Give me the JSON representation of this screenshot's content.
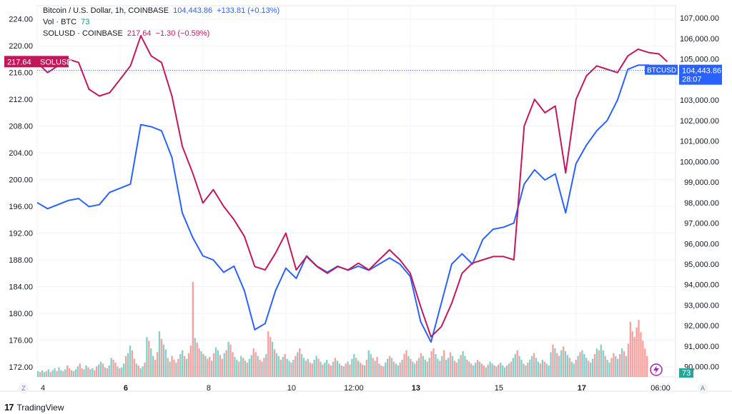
{
  "legend": {
    "symbol_title": "Bitcoin / U.S. Dollar, 1h, COINBASE",
    "btc_last": "104,443.86",
    "btc_change": "+133.81 (+0.13%)",
    "vol_label": "Vol · BTC",
    "vol_value": "73",
    "sol_title": "SOLUSD · COINBASE",
    "sol_last": "217.64",
    "sol_change": "−1.30 (−0.59%)"
  },
  "footer": {
    "brand": "TradingView",
    "logo": "17"
  },
  "corners": {
    "left": "Z",
    "right": "A"
  },
  "colors": {
    "btc": "#2962ff",
    "sol": "#c2185b",
    "vol_up": "#26a69a",
    "vol_down": "#ef5350"
  },
  "chart_data": {
    "type": "line",
    "x_ticks": [
      "4",
      "6",
      "8",
      "10",
      "12:00",
      "13",
      "15",
      "17",
      "06:00"
    ],
    "x_range": [
      0,
      15.4
    ],
    "left_axis": {
      "series": "SOLUSD",
      "ylim": [
        170.5,
        226
      ],
      "ticks": [
        172,
        176,
        180,
        184,
        188,
        192,
        196,
        200,
        204,
        208,
        212,
        216,
        220,
        224
      ],
      "tick_labels": [
        "172.00",
        "176.00",
        "180.00",
        "184.00",
        "188.00",
        "192.00",
        "196.00",
        "200.00",
        "204.00",
        "208.00",
        "212.00",
        "216.00",
        "220.00",
        "224.00"
      ]
    },
    "right_axis": {
      "series": "BTCUSD",
      "ylim": [
        89500,
        107600
      ],
      "ticks": [
        90000,
        91000,
        92000,
        93000,
        94000,
        95000,
        96000,
        97000,
        98000,
        99000,
        100000,
        101000,
        102000,
        103000,
        104000,
        105000,
        106000,
        107000
      ],
      "tick_labels": [
        "90,000.00",
        "91,000.00",
        "92,000.00",
        "93,000.00",
        "94,000.00",
        "95,000.00",
        "96,000.00",
        "97,000.00",
        "98,000.00",
        "99,000.00",
        "100,000.00",
        "101,000.00",
        "102,000.00",
        "103,000.00",
        "104,000.00",
        "105,000.00",
        "106,000.00",
        "107,000.00"
      ]
    },
    "series": [
      {
        "name": "BTCUSD",
        "axis": "right",
        "x": [
          0,
          0.25,
          0.5,
          0.75,
          1,
          1.25,
          1.5,
          1.75,
          2,
          2.25,
          2.5,
          2.75,
          3,
          3.25,
          3.5,
          3.75,
          4,
          4.25,
          4.5,
          4.75,
          5,
          5.25,
          5.5,
          5.75,
          6,
          6.25,
          6.5,
          6.75,
          7,
          7.25,
          7.5,
          7.75,
          8,
          8.25,
          8.5,
          8.75,
          9,
          9.25,
          9.5,
          9.75,
          10,
          10.25,
          10.5,
          10.75,
          11,
          11.25,
          11.5,
          11.75,
          12,
          12.25,
          12.5,
          12.75,
          13,
          13.25,
          13.5,
          13.75,
          14,
          14.25,
          14.5,
          14.75,
          15,
          15.2
        ],
        "y": [
          98000,
          97700,
          97900,
          98100,
          98200,
          97800,
          97900,
          98500,
          98700,
          98900,
          101800,
          101700,
          101500,
          100200,
          97500,
          96300,
          95400,
          95200,
          94600,
          94900,
          93700,
          91800,
          92100,
          93700,
          94800,
          94300,
          95400,
          94900,
          94600,
          94900,
          94700,
          94900,
          94700,
          95000,
          95300,
          95000,
          94400,
          92200,
          91200,
          93100,
          95000,
          95500,
          95000,
          96200,
          96700,
          96800,
          97000,
          98900,
          99600,
          99100,
          99400,
          97500,
          99900,
          100800,
          101500,
          102000,
          103000,
          104500,
          104700,
          104700,
          104500,
          104440
        ]
      },
      {
        "name": "SOLUSD",
        "axis": "left",
        "x": [
          0,
          0.25,
          0.5,
          0.75,
          1,
          1.25,
          1.5,
          1.75,
          2,
          2.25,
          2.5,
          2.75,
          3,
          3.25,
          3.5,
          3.75,
          4,
          4.25,
          4.5,
          4.75,
          5,
          5.25,
          5.5,
          5.75,
          6,
          6.25,
          6.5,
          6.75,
          7,
          7.25,
          7.5,
          7.75,
          8,
          8.25,
          8.5,
          8.75,
          9,
          9.25,
          9.5,
          9.75,
          10,
          10.25,
          10.5,
          10.75,
          11,
          11.25,
          11.5,
          11.75,
          12,
          12.25,
          12.5,
          12.75,
          13,
          13.25,
          13.5,
          13.75,
          14,
          14.25,
          14.5,
          14.75,
          15,
          15.2
        ],
        "y": [
          217.5,
          216,
          217,
          218,
          217.5,
          213.5,
          212.5,
          213,
          215,
          217,
          221.5,
          218.5,
          217.5,
          212.5,
          205,
          201,
          196.5,
          198.5,
          196,
          194,
          191.5,
          187,
          186.5,
          189,
          192,
          186.5,
          188.5,
          187,
          186,
          187,
          186.5,
          187.5,
          186.5,
          188,
          189.5,
          188,
          186,
          181,
          176.5,
          178,
          181.5,
          186,
          187.5,
          188,
          188.5,
          188.5,
          188,
          208,
          212,
          210,
          211,
          201,
          212,
          215.5,
          217,
          216.5,
          216,
          218.5,
          219.5,
          219,
          218.8,
          217.64
        ]
      }
    ],
    "volume": {
      "ylim": [
        0,
        100
      ],
      "values": [
        6,
        5,
        7,
        5,
        6,
        8,
        5,
        7,
        9,
        6,
        10,
        7,
        6,
        8,
        12,
        9,
        7,
        6,
        8,
        11,
        14,
        9,
        8,
        12,
        10,
        8,
        9,
        7,
        11,
        13,
        16,
        14,
        10,
        9,
        12,
        20,
        18,
        15,
        11,
        9,
        10,
        14,
        22,
        25,
        33,
        28,
        19,
        14,
        12,
        9,
        11,
        15,
        42,
        38,
        30,
        22,
        18,
        26,
        48,
        40,
        34,
        29,
        20,
        16,
        22,
        18,
        15,
        19,
        24,
        28,
        22,
        19,
        25,
        33,
        100,
        41,
        36,
        30,
        27,
        24,
        22,
        19,
        21,
        17,
        25,
        31,
        28,
        23,
        19,
        25,
        28,
        37,
        34,
        26,
        21,
        18,
        16,
        22,
        20,
        17,
        15,
        19,
        23,
        30,
        26,
        22,
        18,
        16,
        20,
        24,
        48,
        42,
        37,
        29,
        25,
        22,
        18,
        21,
        24,
        19,
        17,
        15,
        18,
        22,
        26,
        30,
        24,
        20,
        17,
        19,
        15,
        14,
        18,
        22,
        19,
        16,
        13,
        15,
        18,
        14,
        12,
        16,
        20,
        17,
        14,
        12,
        11,
        14,
        16,
        13,
        19,
        24,
        20,
        17,
        15,
        13,
        12,
        18,
        28,
        24,
        20,
        17,
        21,
        14,
        12,
        11,
        15,
        19,
        22,
        20,
        16,
        14,
        12,
        15,
        18,
        24,
        28,
        22,
        19,
        16,
        14,
        17,
        20,
        25,
        22,
        18,
        16,
        20,
        27,
        30,
        24,
        19,
        17,
        22,
        28,
        18,
        20,
        26,
        22,
        17,
        15,
        19,
        23,
        27,
        22,
        18,
        16,
        14,
        12,
        15,
        18,
        16,
        14,
        12,
        10,
        13,
        16,
        14,
        12,
        11,
        13,
        15,
        12,
        10,
        12,
        14,
        16,
        20,
        24,
        28,
        22,
        18,
        14,
        12,
        15,
        18,
        22,
        25,
        20,
        16,
        14,
        18,
        16,
        14,
        12,
        26,
        34,
        30,
        25,
        22,
        28,
        32,
        27,
        23,
        20,
        16,
        14,
        18,
        22,
        26,
        28,
        24,
        20,
        17,
        15,
        19,
        24,
        30,
        28,
        34,
        28,
        22,
        18,
        15,
        20,
        25,
        22,
        19,
        24,
        30,
        27,
        22,
        35,
        58,
        48,
        42,
        52,
        60,
        47,
        38,
        30,
        22
      ],
      "up_flags": [
        1,
        0,
        1,
        1,
        0,
        1,
        0,
        1,
        1,
        0,
        1,
        1,
        0,
        1,
        0,
        0,
        1,
        0,
        1,
        1,
        0,
        0,
        1,
        1,
        0,
        1,
        1,
        0,
        0,
        1,
        1,
        0,
        1,
        0,
        1,
        1,
        0,
        0,
        1,
        0,
        1,
        1,
        0,
        1,
        1,
        0,
        0,
        1,
        0,
        1,
        1,
        0,
        1,
        0,
        1,
        1,
        0,
        0,
        1,
        0,
        1,
        1,
        0,
        1,
        0,
        0,
        1,
        0,
        1,
        1,
        0,
        1,
        0,
        0,
        0,
        1,
        0,
        0,
        1,
        0,
        1,
        0,
        0,
        1,
        0,
        1,
        1,
        0,
        0,
        1,
        0,
        1,
        0,
        0,
        1,
        1,
        0,
        1,
        0,
        1,
        0,
        1,
        1,
        0,
        0,
        1,
        0,
        1,
        0,
        1,
        0,
        0,
        1,
        0,
        1,
        1,
        0,
        1,
        0,
        1,
        1,
        0,
        1,
        0,
        1,
        0,
        1,
        1,
        0,
        1,
        0,
        0,
        1,
        1,
        0,
        1,
        0,
        1,
        1,
        0,
        0,
        1,
        0,
        1,
        1,
        0,
        1,
        0,
        1,
        0,
        1,
        1,
        0,
        1,
        0,
        0,
        1,
        0,
        1,
        1,
        0,
        1,
        0,
        1,
        0,
        0,
        1,
        1,
        0,
        1,
        0,
        1,
        1,
        0,
        1,
        0,
        0,
        1,
        0,
        1,
        1,
        0,
        1,
        0,
        1,
        1,
        0,
        1,
        0,
        0,
        1,
        1,
        0,
        1,
        0,
        1,
        1,
        0,
        1,
        0,
        0,
        1,
        0,
        1,
        1,
        0,
        1,
        0,
        1,
        1,
        0,
        1,
        0,
        0,
        1,
        0,
        1,
        1,
        0,
        1,
        0,
        1,
        1,
        1,
        0,
        1,
        0,
        1,
        1,
        0,
        1,
        1,
        0,
        1,
        0,
        1,
        1,
        0,
        1,
        1,
        0,
        1,
        0,
        1,
        1,
        1,
        0,
        1,
        0,
        1,
        1,
        0,
        1,
        1,
        0,
        1,
        1,
        0,
        1,
        0,
        1,
        1,
        1,
        0,
        1,
        1,
        0,
        1,
        0,
        1,
        1,
        0,
        1,
        1,
        0,
        0,
        1,
        1,
        0,
        1,
        0,
        1
      ]
    },
    "price_labels": [
      {
        "series": "SOLUSD",
        "axis": "left",
        "value": 217.64,
        "text": "217.64",
        "name": "SOLUSD"
      },
      {
        "series": "BTCUSD",
        "axis": "right",
        "value": 104443.86,
        "text": "104,443.86",
        "countdown": "28:07",
        "name": "BTCUSD"
      },
      {
        "series": "Volume",
        "axis": "volume",
        "text": "73"
      }
    ]
  }
}
